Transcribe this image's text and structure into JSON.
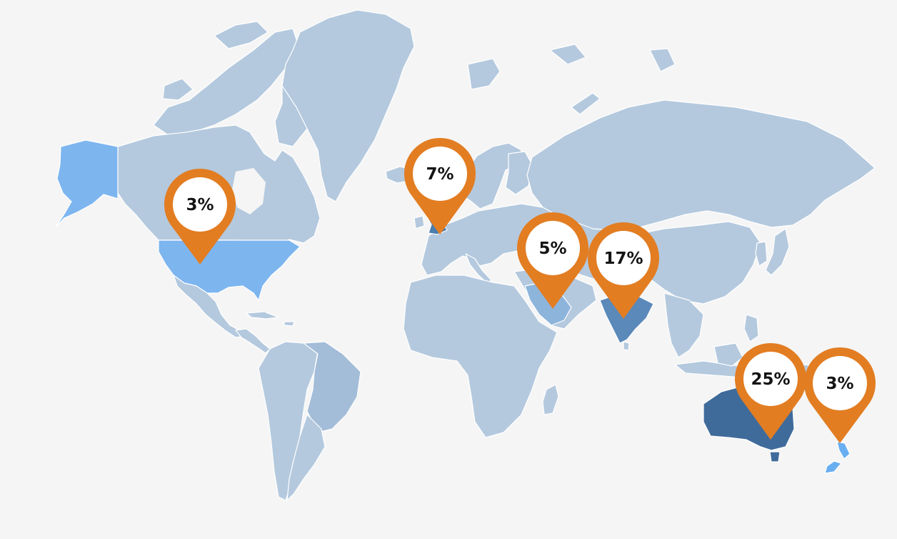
{
  "map": {
    "background": "#f5f5f5",
    "land_color": "#b4c9de",
    "pin_color": "#e27d22",
    "highlighted_regions": [
      {
        "region": "United States",
        "color": "#7db5ef"
      },
      {
        "region": "Alaska",
        "color": "#7db5ef"
      },
      {
        "region": "United Kingdom",
        "color": "#4b7dae"
      },
      {
        "region": "Saudi Arabia",
        "color": "#8db4db"
      },
      {
        "region": "India",
        "color": "#5a89ba"
      },
      {
        "region": "Australia",
        "color": "#3f6b9b"
      },
      {
        "region": "New Zealand",
        "color": "#6aaef2"
      }
    ],
    "pins": [
      {
        "id": "usa",
        "label": "3%"
      },
      {
        "id": "uk",
        "label": "7%"
      },
      {
        "id": "saudi",
        "label": "5%"
      },
      {
        "id": "india",
        "label": "17%"
      },
      {
        "id": "australia",
        "label": "25%"
      },
      {
        "id": "nz",
        "label": "3%"
      }
    ]
  }
}
